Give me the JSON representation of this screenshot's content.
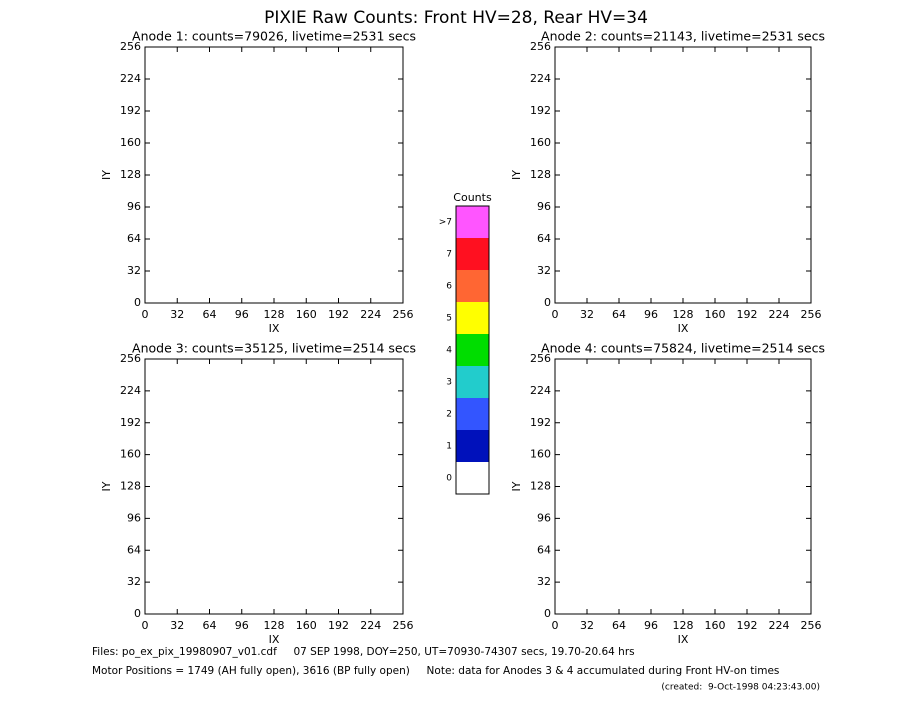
{
  "title": "PIXIE Raw Counts:  Front HV=28, Rear HV=34",
  "panels": [
    {
      "title": "Anode 1: counts=79026, livetime=2531 secs",
      "xlabel": "IX",
      "ylabel": "IY",
      "xticks": [
        0,
        32,
        64,
        96,
        128,
        160,
        192,
        224,
        256
      ],
      "yticks": [
        0,
        32,
        64,
        96,
        128,
        160,
        192,
        224,
        256
      ]
    },
    {
      "title": "Anode 2: counts=21143, livetime=2531 secs",
      "xlabel": "IX",
      "ylabel": "IY",
      "xticks": [
        0,
        32,
        64,
        96,
        128,
        160,
        192,
        224,
        256
      ],
      "yticks": [
        0,
        32,
        64,
        96,
        128,
        160,
        192,
        224,
        256
      ]
    },
    {
      "title": "Anode 3: counts=35125, livetime=2514 secs",
      "xlabel": "IX",
      "ylabel": "IY",
      "xticks": [
        0,
        32,
        64,
        96,
        128,
        160,
        192,
        224,
        256
      ],
      "yticks": [
        0,
        32,
        64,
        96,
        128,
        160,
        192,
        224,
        256
      ]
    },
    {
      "title": "Anode 4: counts=75824, livetime=2514 secs",
      "xlabel": "IX",
      "ylabel": "IY",
      "xticks": [
        0,
        32,
        64,
        96,
        128,
        160,
        192,
        224,
        256
      ],
      "yticks": [
        0,
        32,
        64,
        96,
        128,
        160,
        192,
        224,
        256
      ]
    }
  ],
  "colorbar": {
    "title": "Counts",
    "levels": [
      {
        "label": ">7",
        "color": "#ff55ff"
      },
      {
        "label": "7",
        "color": "#ff1020"
      },
      {
        "label": "6",
        "color": "#ff6633"
      },
      {
        "label": "5",
        "color": "#ffff00"
      },
      {
        "label": "4",
        "color": "#00dd00"
      },
      {
        "label": "3",
        "color": "#22cccc"
      },
      {
        "label": "2",
        "color": "#3355ff"
      },
      {
        "label": "1",
        "color": "#0011bb"
      },
      {
        "label": "0",
        "color": "#ffffff"
      }
    ]
  },
  "footer": {
    "files": "Files: po_ex_pix_19980907_v01.cdf     07 SEP 1998, DOY=250, UT=70930-74307 secs, 19.70-20.64 hrs",
    "motor": "Motor Positions = 1749 (AH fully open), 3616 (BP fully open)     Note: data for Anodes 3 & 4 accumulated during Front HV-on times",
    "created": "(created:  9-Oct-1998 04:23:43.00)"
  }
}
